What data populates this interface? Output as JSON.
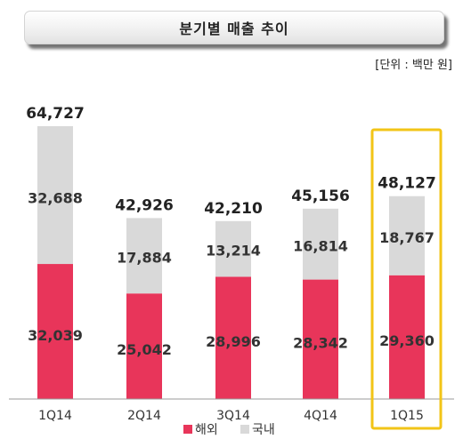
{
  "header": {
    "title": "분기별 매출 추이",
    "unit": "[단위 : 백만 원]"
  },
  "colors": {
    "overseas": "#e8355a",
    "domestic": "#d9d9d9",
    "highlight": "#f2c417",
    "axis": "#999999"
  },
  "chart_data": {
    "type": "bar",
    "stacked": true,
    "categories": [
      "1Q14",
      "2Q14",
      "3Q14",
      "4Q14",
      "1Q15"
    ],
    "series": [
      {
        "name": "해외",
        "values": [
          32039,
          25042,
          28996,
          28342,
          29360
        ]
      },
      {
        "name": "국내",
        "values": [
          32688,
          17884,
          13214,
          16814,
          18767
        ]
      }
    ],
    "totals": [
      "64,727",
      "42,926",
      "42,210",
      "45,156",
      "48,127"
    ],
    "highlighted_category": "1Q15",
    "legend": {
      "position": "bottom",
      "items": [
        "해외",
        "국내"
      ]
    },
    "title": "분기별 매출 추이",
    "unit": "[단위 : 백만 원]",
    "xlabel": "",
    "ylabel": "",
    "ylim": [
      0,
      64727
    ],
    "grid": false
  }
}
